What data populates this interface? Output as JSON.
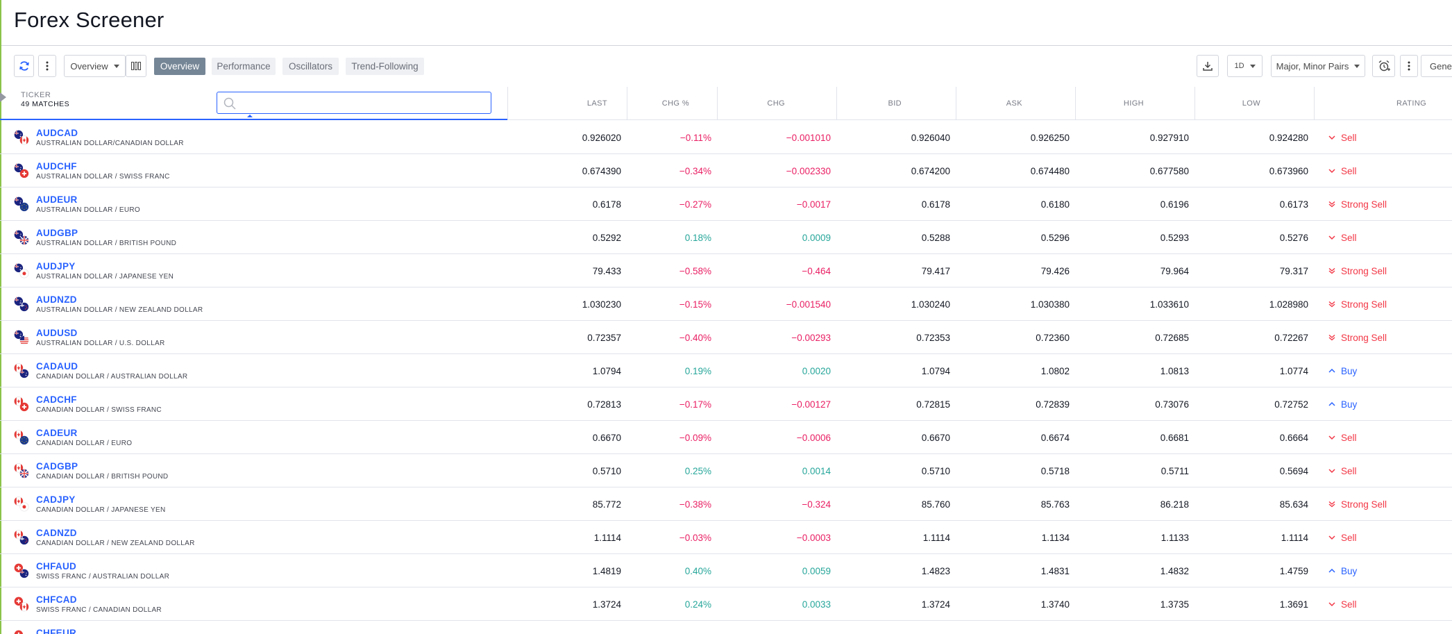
{
  "title": "Forex Screener",
  "toolbar": {
    "overview_dropdown": "Overview",
    "tabs": [
      "Overview",
      "Performance",
      "Oscillators",
      "Trend-Following"
    ],
    "interval": "1D",
    "pairs_filter": "Major, Minor Pairs",
    "general_label": "Gener"
  },
  "table": {
    "ticker_label": "TICKER",
    "matches": "49 MATCHES",
    "columns": [
      "LAST",
      "CHG %",
      "CHG",
      "BID",
      "ASK",
      "HIGH",
      "LOW",
      "RATING"
    ],
    "rows": [
      {
        "symbol": "AUDCAD",
        "desc": "AUSTRALIAN DOLLAR/CANADIAN DOLLAR",
        "base": "au",
        "quote": "ca",
        "last": "0.926020",
        "chg_pct": "−0.11%",
        "chg": "−0.001010",
        "bid": "0.926040",
        "ask": "0.926250",
        "high": "0.927910",
        "low": "0.924280",
        "rating": "Sell",
        "dir": "neg",
        "rtype": "sell"
      },
      {
        "symbol": "AUDCHF",
        "desc": "AUSTRALIAN DOLLAR / SWISS FRANC",
        "base": "au",
        "quote": "ch",
        "last": "0.674390",
        "chg_pct": "−0.34%",
        "chg": "−0.002330",
        "bid": "0.674200",
        "ask": "0.674480",
        "high": "0.677580",
        "low": "0.673960",
        "rating": "Sell",
        "dir": "neg",
        "rtype": "sell"
      },
      {
        "symbol": "AUDEUR",
        "desc": "AUSTRALIAN DOLLAR / EURO",
        "base": "au",
        "quote": "eu",
        "last": "0.6178",
        "chg_pct": "−0.27%",
        "chg": "−0.0017",
        "bid": "0.6178",
        "ask": "0.6180",
        "high": "0.6196",
        "low": "0.6173",
        "rating": "Strong Sell",
        "dir": "neg",
        "rtype": "strong-sell"
      },
      {
        "symbol": "AUDGBP",
        "desc": "AUSTRALIAN DOLLAR / BRITISH POUND",
        "base": "au",
        "quote": "gb",
        "last": "0.5292",
        "chg_pct": "0.18%",
        "chg": "0.0009",
        "bid": "0.5288",
        "ask": "0.5296",
        "high": "0.5293",
        "low": "0.5276",
        "rating": "Sell",
        "dir": "pos",
        "rtype": "sell"
      },
      {
        "symbol": "AUDJPY",
        "desc": "AUSTRALIAN DOLLAR / JAPANESE YEN",
        "base": "au",
        "quote": "jp",
        "last": "79.433",
        "chg_pct": "−0.58%",
        "chg": "−0.464",
        "bid": "79.417",
        "ask": "79.426",
        "high": "79.964",
        "low": "79.317",
        "rating": "Strong Sell",
        "dir": "neg",
        "rtype": "strong-sell"
      },
      {
        "symbol": "AUDNZD",
        "desc": "AUSTRALIAN DOLLAR / NEW ZEALAND DOLLAR",
        "base": "au",
        "quote": "nz",
        "last": "1.030230",
        "chg_pct": "−0.15%",
        "chg": "−0.001540",
        "bid": "1.030240",
        "ask": "1.030380",
        "high": "1.033610",
        "low": "1.028980",
        "rating": "Strong Sell",
        "dir": "neg",
        "rtype": "strong-sell"
      },
      {
        "symbol": "AUDUSD",
        "desc": "AUSTRALIAN DOLLAR / U.S. DOLLAR",
        "base": "au",
        "quote": "us",
        "last": "0.72357",
        "chg_pct": "−0.40%",
        "chg": "−0.00293",
        "bid": "0.72353",
        "ask": "0.72360",
        "high": "0.72685",
        "low": "0.72267",
        "rating": "Strong Sell",
        "dir": "neg",
        "rtype": "strong-sell"
      },
      {
        "symbol": "CADAUD",
        "desc": "CANADIAN DOLLAR / AUSTRALIAN DOLLAR",
        "base": "ca",
        "quote": "au",
        "last": "1.0794",
        "chg_pct": "0.19%",
        "chg": "0.0020",
        "bid": "1.0794",
        "ask": "1.0802",
        "high": "1.0813",
        "low": "1.0774",
        "rating": "Buy",
        "dir": "pos",
        "rtype": "buy"
      },
      {
        "symbol": "CADCHF",
        "desc": "CANADIAN DOLLAR / SWISS FRANC",
        "base": "ca",
        "quote": "ch",
        "last": "0.72813",
        "chg_pct": "−0.17%",
        "chg": "−0.00127",
        "bid": "0.72815",
        "ask": "0.72839",
        "high": "0.73076",
        "low": "0.72752",
        "rating": "Buy",
        "dir": "neg",
        "rtype": "buy"
      },
      {
        "symbol": "CADEUR",
        "desc": "CANADIAN DOLLAR / EURO",
        "base": "ca",
        "quote": "eu",
        "last": "0.6670",
        "chg_pct": "−0.09%",
        "chg": "−0.0006",
        "bid": "0.6670",
        "ask": "0.6674",
        "high": "0.6681",
        "low": "0.6664",
        "rating": "Sell",
        "dir": "neg",
        "rtype": "sell"
      },
      {
        "symbol": "CADGBP",
        "desc": "CANADIAN DOLLAR / BRITISH POUND",
        "base": "ca",
        "quote": "gb",
        "last": "0.5710",
        "chg_pct": "0.25%",
        "chg": "0.0014",
        "bid": "0.5710",
        "ask": "0.5718",
        "high": "0.5711",
        "low": "0.5694",
        "rating": "Sell",
        "dir": "pos",
        "rtype": "sell"
      },
      {
        "symbol": "CADJPY",
        "desc": "CANADIAN DOLLAR / JAPANESE YEN",
        "base": "ca",
        "quote": "jp",
        "last": "85.772",
        "chg_pct": "−0.38%",
        "chg": "−0.324",
        "bid": "85.760",
        "ask": "85.763",
        "high": "86.218",
        "low": "85.634",
        "rating": "Strong Sell",
        "dir": "neg",
        "rtype": "strong-sell"
      },
      {
        "symbol": "CADNZD",
        "desc": "CANADIAN DOLLAR / NEW ZEALAND DOLLAR",
        "base": "ca",
        "quote": "nz",
        "last": "1.1114",
        "chg_pct": "−0.03%",
        "chg": "−0.0003",
        "bid": "1.1114",
        "ask": "1.1134",
        "high": "1.1133",
        "low": "1.1114",
        "rating": "Sell",
        "dir": "neg",
        "rtype": "sell"
      },
      {
        "symbol": "CHFAUD",
        "desc": "SWISS FRANC / AUSTRALIAN DOLLAR",
        "base": "ch",
        "quote": "au",
        "last": "1.4819",
        "chg_pct": "0.40%",
        "chg": "0.0059",
        "bid": "1.4823",
        "ask": "1.4831",
        "high": "1.4832",
        "low": "1.4759",
        "rating": "Buy",
        "dir": "pos",
        "rtype": "buy"
      },
      {
        "symbol": "CHFCAD",
        "desc": "SWISS FRANC / CANADIAN DOLLAR",
        "base": "ch",
        "quote": "ca",
        "last": "1.3724",
        "chg_pct": "0.24%",
        "chg": "0.0033",
        "bid": "1.3724",
        "ask": "1.3740",
        "high": "1.3735",
        "low": "1.3691",
        "rating": "Sell",
        "dir": "pos",
        "rtype": "sell"
      },
      {
        "symbol": "CHFEUR",
        "desc": "",
        "base": "ch",
        "quote": "eu",
        "last": "",
        "chg_pct": "",
        "chg": "",
        "bid": "",
        "ask": "",
        "high": "",
        "low": "",
        "rating": "",
        "dir": "neg",
        "rtype": "sell"
      }
    ]
  },
  "colors": {
    "accent": "#2962ff",
    "negative": "#e91e63",
    "positive": "#26a69a",
    "sell": "#f23645"
  }
}
